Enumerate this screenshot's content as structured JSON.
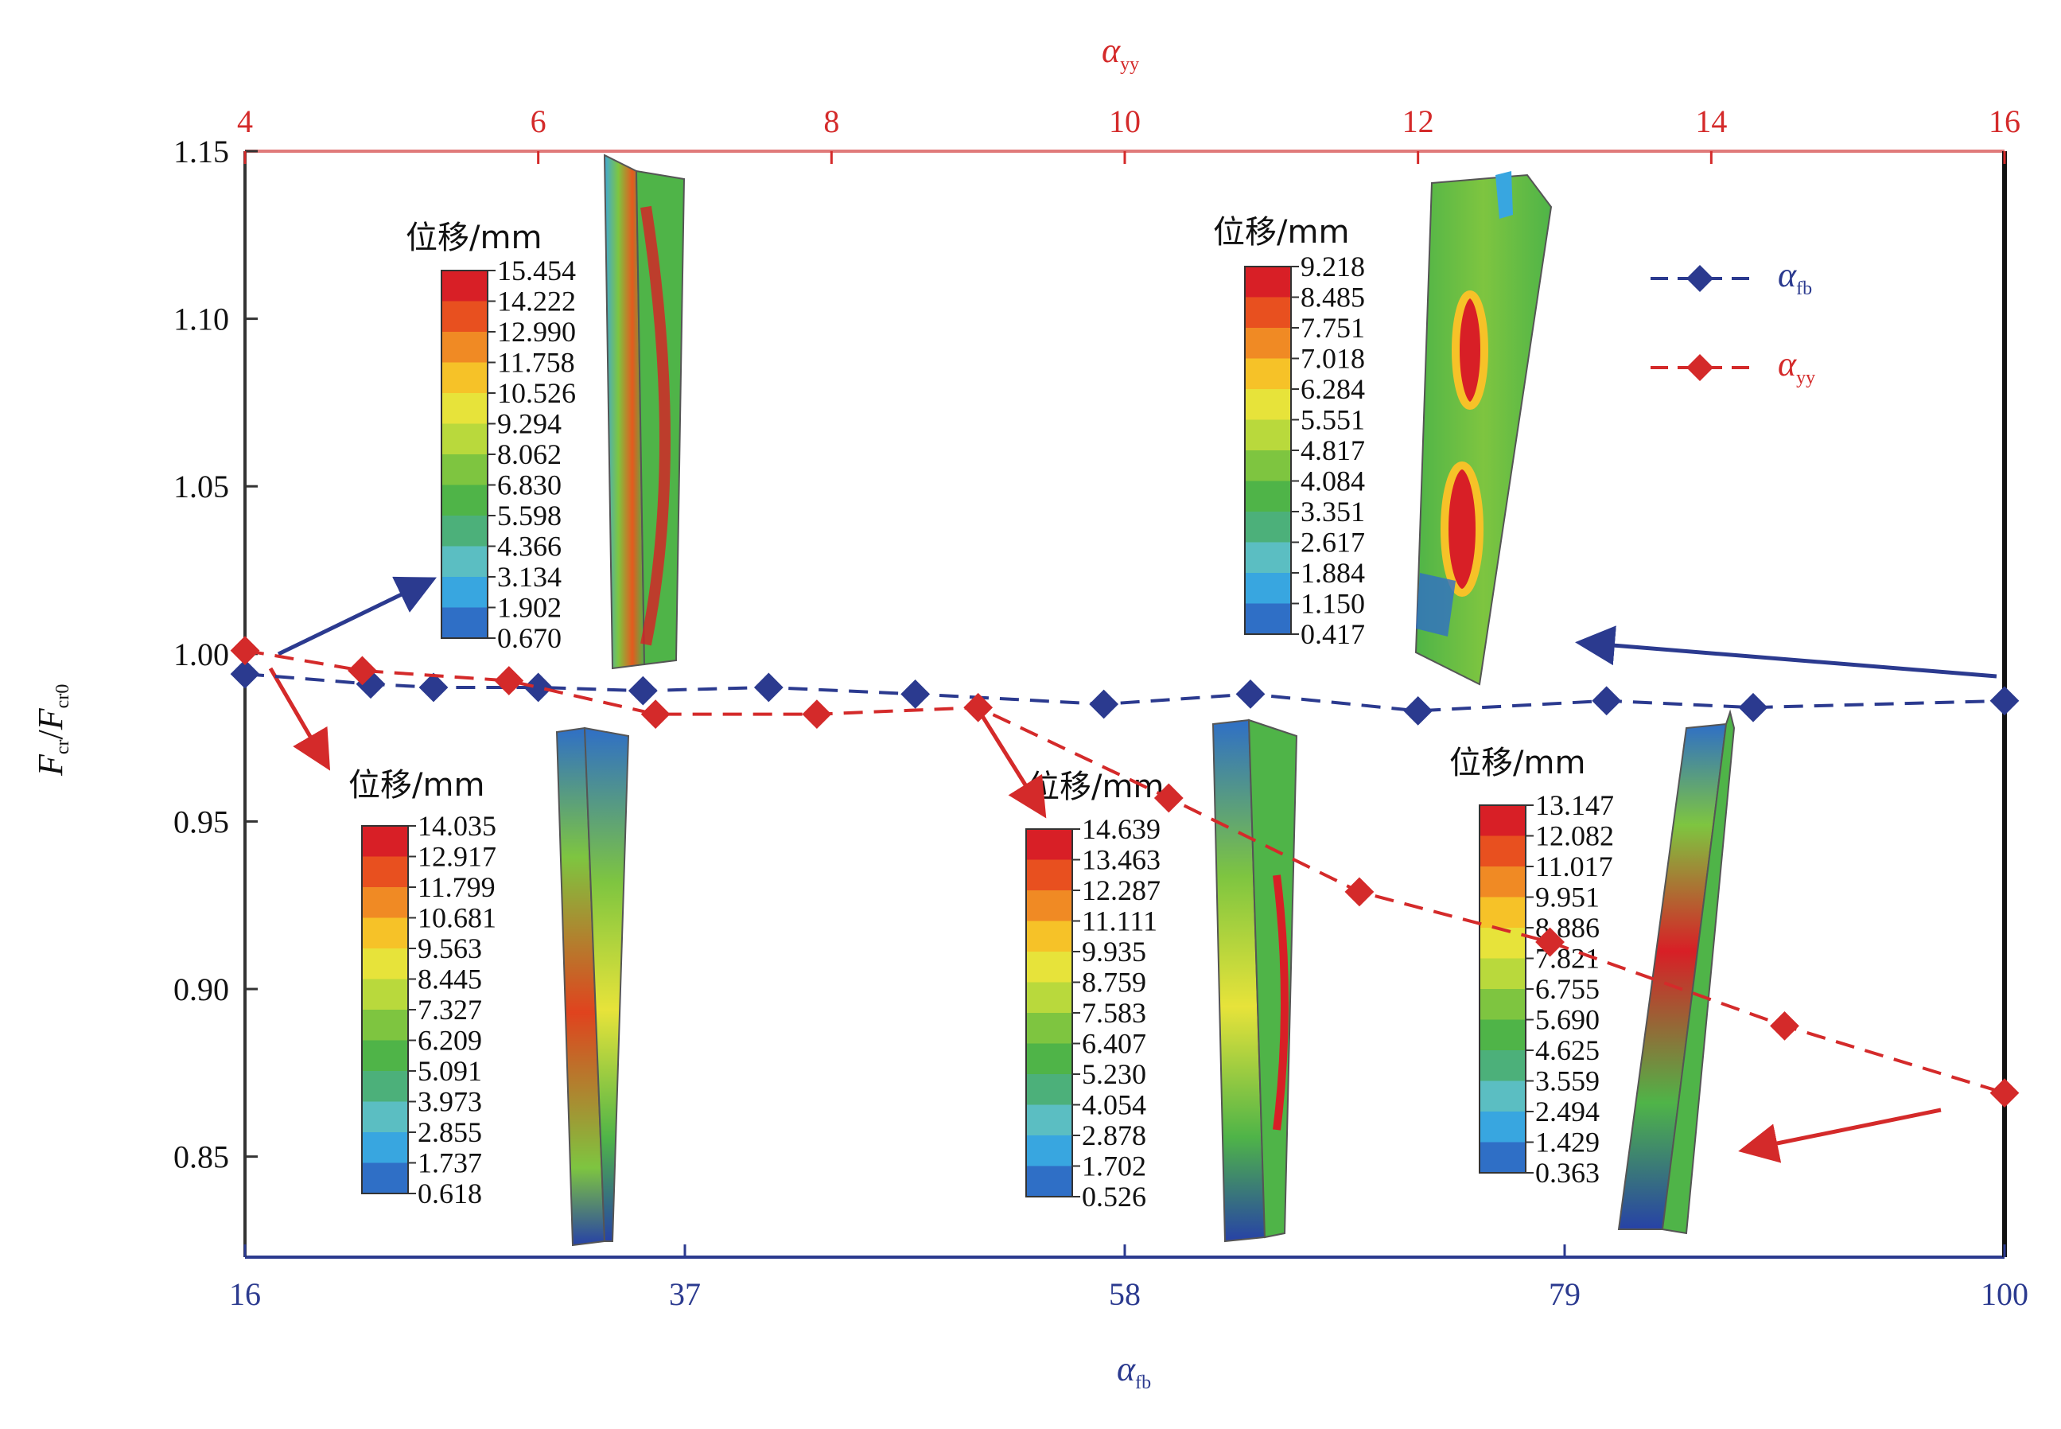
{
  "chart_data": {
    "type": "line",
    "ylabel_main": "F",
    "ylabel_main_sub": "cr",
    "ylabel_den": "F",
    "ylabel_den_sub": "cr0",
    "ylabel_sep": "/",
    "ylim": [
      0.82,
      1.15
    ],
    "yticks": [
      "0.85",
      "0.90",
      "0.95",
      "1.00",
      "1.05",
      "1.10",
      "1.15"
    ],
    "bottom_axis": {
      "label": "α",
      "label_sub": "fb",
      "range": [
        16,
        100
      ],
      "ticks": [
        "16",
        "37",
        "58",
        "79",
        "100"
      ],
      "color": "#2b3a8f"
    },
    "top_axis": {
      "label": "α",
      "label_sub": "yy",
      "range": [
        4,
        16
      ],
      "ticks": [
        "4",
        "6",
        "8",
        "10",
        "12",
        "14",
        "16"
      ],
      "color": "#d42a2a"
    },
    "series": [
      {
        "name": "α",
        "name_sub": "fb",
        "axis": "bottom",
        "color": "#2b3a8f",
        "x": [
          16,
          22,
          25,
          30,
          35,
          41,
          48,
          57,
          64,
          72,
          81,
          88,
          100
        ],
        "y": [
          0.994,
          0.991,
          0.99,
          0.99,
          0.989,
          0.99,
          0.988,
          0.985,
          0.988,
          0.983,
          0.986,
          0.984,
          0.986
        ]
      },
      {
        "name": "α",
        "name_sub": "yy",
        "axis": "top",
        "color": "#d42a2a",
        "x": [
          4,
          4.8,
          5.8,
          6.8,
          7.9,
          9.0,
          10.3,
          11.6,
          12.9,
          14.5,
          16.0
        ],
        "y": [
          1.001,
          0.995,
          0.992,
          0.982,
          0.982,
          0.984,
          0.957,
          0.929,
          0.914,
          0.889,
          0.869
        ]
      }
    ],
    "legend_position": "top-right",
    "insets": [
      {
        "title": "位移/mm",
        "values": [
          "15.454",
          "14.222",
          "12.990",
          "11.758",
          "10.526",
          "9.294",
          "8.062",
          "6.830",
          "5.598",
          "4.366",
          "3.134",
          "1.902",
          "0.670"
        ]
      },
      {
        "title": "位移/mm",
        "values": [
          "9.218",
          "8.485",
          "7.751",
          "7.018",
          "6.284",
          "5.551",
          "4.817",
          "4.084",
          "3.351",
          "2.617",
          "1.884",
          "1.150",
          "0.417"
        ]
      },
      {
        "title": "位移/mm",
        "values": [
          "14.035",
          "12.917",
          "11.799",
          "10.681",
          "9.563",
          "8.445",
          "7.327",
          "6.209",
          "5.091",
          "3.973",
          "2.855",
          "1.737",
          "0.618"
        ]
      },
      {
        "title": "位移/mm",
        "values": [
          "14.639",
          "13.463",
          "12.287",
          "11.111",
          "9.935",
          "8.759",
          "7.583",
          "6.407",
          "5.230",
          "4.054",
          "2.878",
          "1.702",
          "0.526"
        ]
      },
      {
        "title": "位移/mm",
        "values": [
          "13.147",
          "12.082",
          "11.017",
          "9.951",
          "8.886",
          "7.821",
          "6.755",
          "5.690",
          "4.625",
          "3.559",
          "2.494",
          "1.429",
          "0.363"
        ]
      }
    ],
    "colormap": [
      "#d81f26",
      "#e8501f",
      "#f08a24",
      "#f6c228",
      "#e7e33a",
      "#b9d93c",
      "#7ec540",
      "#4fb448",
      "#4cb07a",
      "#5bbec2",
      "#38a6e0",
      "#2f6fc6",
      "#2742a6"
    ]
  }
}
